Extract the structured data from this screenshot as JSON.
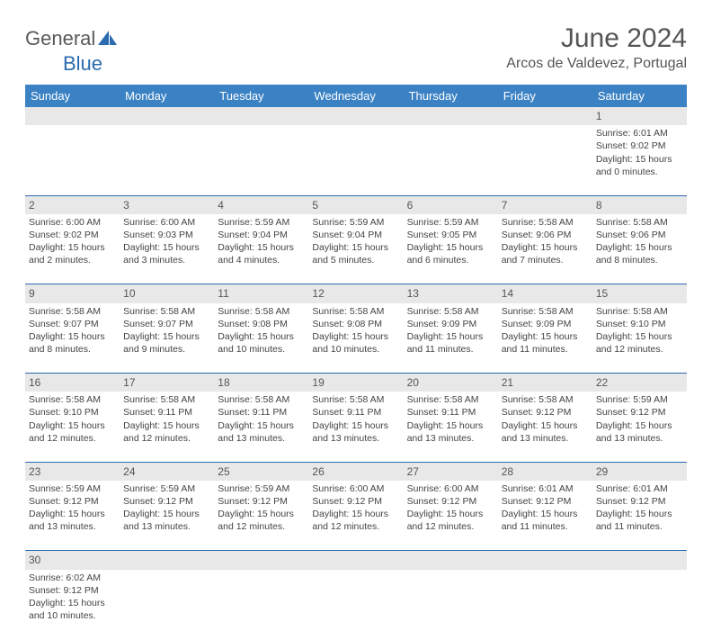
{
  "logo": {
    "general": "General",
    "blue": "Blue"
  },
  "header": {
    "month_title": "June 2024",
    "location": "Arcos de Valdevez, Portugal"
  },
  "colors": {
    "header_bg": "#3b82c4",
    "header_text": "#ffffff",
    "daynum_bg": "#e8e8e8",
    "border": "#2b6bb0",
    "logo_gray": "#5a5a5a",
    "logo_blue": "#2b6bb0"
  },
  "weekdays": [
    "Sunday",
    "Monday",
    "Tuesday",
    "Wednesday",
    "Thursday",
    "Friday",
    "Saturday"
  ],
  "weeks": [
    {
      "nums": [
        "",
        "",
        "",
        "",
        "",
        "",
        "1"
      ],
      "cells": [
        null,
        null,
        null,
        null,
        null,
        null,
        {
          "sunrise": "Sunrise: 6:01 AM",
          "sunset": "Sunset: 9:02 PM",
          "daylight1": "Daylight: 15 hours",
          "daylight2": "and 0 minutes."
        }
      ]
    },
    {
      "nums": [
        "2",
        "3",
        "4",
        "5",
        "6",
        "7",
        "8"
      ],
      "cells": [
        {
          "sunrise": "Sunrise: 6:00 AM",
          "sunset": "Sunset: 9:02 PM",
          "daylight1": "Daylight: 15 hours",
          "daylight2": "and 2 minutes."
        },
        {
          "sunrise": "Sunrise: 6:00 AM",
          "sunset": "Sunset: 9:03 PM",
          "daylight1": "Daylight: 15 hours",
          "daylight2": "and 3 minutes."
        },
        {
          "sunrise": "Sunrise: 5:59 AM",
          "sunset": "Sunset: 9:04 PM",
          "daylight1": "Daylight: 15 hours",
          "daylight2": "and 4 minutes."
        },
        {
          "sunrise": "Sunrise: 5:59 AM",
          "sunset": "Sunset: 9:04 PM",
          "daylight1": "Daylight: 15 hours",
          "daylight2": "and 5 minutes."
        },
        {
          "sunrise": "Sunrise: 5:59 AM",
          "sunset": "Sunset: 9:05 PM",
          "daylight1": "Daylight: 15 hours",
          "daylight2": "and 6 minutes."
        },
        {
          "sunrise": "Sunrise: 5:58 AM",
          "sunset": "Sunset: 9:06 PM",
          "daylight1": "Daylight: 15 hours",
          "daylight2": "and 7 minutes."
        },
        {
          "sunrise": "Sunrise: 5:58 AM",
          "sunset": "Sunset: 9:06 PM",
          "daylight1": "Daylight: 15 hours",
          "daylight2": "and 8 minutes."
        }
      ]
    },
    {
      "nums": [
        "9",
        "10",
        "11",
        "12",
        "13",
        "14",
        "15"
      ],
      "cells": [
        {
          "sunrise": "Sunrise: 5:58 AM",
          "sunset": "Sunset: 9:07 PM",
          "daylight1": "Daylight: 15 hours",
          "daylight2": "and 8 minutes."
        },
        {
          "sunrise": "Sunrise: 5:58 AM",
          "sunset": "Sunset: 9:07 PM",
          "daylight1": "Daylight: 15 hours",
          "daylight2": "and 9 minutes."
        },
        {
          "sunrise": "Sunrise: 5:58 AM",
          "sunset": "Sunset: 9:08 PM",
          "daylight1": "Daylight: 15 hours",
          "daylight2": "and 10 minutes."
        },
        {
          "sunrise": "Sunrise: 5:58 AM",
          "sunset": "Sunset: 9:08 PM",
          "daylight1": "Daylight: 15 hours",
          "daylight2": "and 10 minutes."
        },
        {
          "sunrise": "Sunrise: 5:58 AM",
          "sunset": "Sunset: 9:09 PM",
          "daylight1": "Daylight: 15 hours",
          "daylight2": "and 11 minutes."
        },
        {
          "sunrise": "Sunrise: 5:58 AM",
          "sunset": "Sunset: 9:09 PM",
          "daylight1": "Daylight: 15 hours",
          "daylight2": "and 11 minutes."
        },
        {
          "sunrise": "Sunrise: 5:58 AM",
          "sunset": "Sunset: 9:10 PM",
          "daylight1": "Daylight: 15 hours",
          "daylight2": "and 12 minutes."
        }
      ]
    },
    {
      "nums": [
        "16",
        "17",
        "18",
        "19",
        "20",
        "21",
        "22"
      ],
      "cells": [
        {
          "sunrise": "Sunrise: 5:58 AM",
          "sunset": "Sunset: 9:10 PM",
          "daylight1": "Daylight: 15 hours",
          "daylight2": "and 12 minutes."
        },
        {
          "sunrise": "Sunrise: 5:58 AM",
          "sunset": "Sunset: 9:11 PM",
          "daylight1": "Daylight: 15 hours",
          "daylight2": "and 12 minutes."
        },
        {
          "sunrise": "Sunrise: 5:58 AM",
          "sunset": "Sunset: 9:11 PM",
          "daylight1": "Daylight: 15 hours",
          "daylight2": "and 13 minutes."
        },
        {
          "sunrise": "Sunrise: 5:58 AM",
          "sunset": "Sunset: 9:11 PM",
          "daylight1": "Daylight: 15 hours",
          "daylight2": "and 13 minutes."
        },
        {
          "sunrise": "Sunrise: 5:58 AM",
          "sunset": "Sunset: 9:11 PM",
          "daylight1": "Daylight: 15 hours",
          "daylight2": "and 13 minutes."
        },
        {
          "sunrise": "Sunrise: 5:58 AM",
          "sunset": "Sunset: 9:12 PM",
          "daylight1": "Daylight: 15 hours",
          "daylight2": "and 13 minutes."
        },
        {
          "sunrise": "Sunrise: 5:59 AM",
          "sunset": "Sunset: 9:12 PM",
          "daylight1": "Daylight: 15 hours",
          "daylight2": "and 13 minutes."
        }
      ]
    },
    {
      "nums": [
        "23",
        "24",
        "25",
        "26",
        "27",
        "28",
        "29"
      ],
      "cells": [
        {
          "sunrise": "Sunrise: 5:59 AM",
          "sunset": "Sunset: 9:12 PM",
          "daylight1": "Daylight: 15 hours",
          "daylight2": "and 13 minutes."
        },
        {
          "sunrise": "Sunrise: 5:59 AM",
          "sunset": "Sunset: 9:12 PM",
          "daylight1": "Daylight: 15 hours",
          "daylight2": "and 13 minutes."
        },
        {
          "sunrise": "Sunrise: 5:59 AM",
          "sunset": "Sunset: 9:12 PM",
          "daylight1": "Daylight: 15 hours",
          "daylight2": "and 12 minutes."
        },
        {
          "sunrise": "Sunrise: 6:00 AM",
          "sunset": "Sunset: 9:12 PM",
          "daylight1": "Daylight: 15 hours",
          "daylight2": "and 12 minutes."
        },
        {
          "sunrise": "Sunrise: 6:00 AM",
          "sunset": "Sunset: 9:12 PM",
          "daylight1": "Daylight: 15 hours",
          "daylight2": "and 12 minutes."
        },
        {
          "sunrise": "Sunrise: 6:01 AM",
          "sunset": "Sunset: 9:12 PM",
          "daylight1": "Daylight: 15 hours",
          "daylight2": "and 11 minutes."
        },
        {
          "sunrise": "Sunrise: 6:01 AM",
          "sunset": "Sunset: 9:12 PM",
          "daylight1": "Daylight: 15 hours",
          "daylight2": "and 11 minutes."
        }
      ]
    },
    {
      "nums": [
        "30",
        "",
        "",
        "",
        "",
        "",
        ""
      ],
      "cells": [
        {
          "sunrise": "Sunrise: 6:02 AM",
          "sunset": "Sunset: 9:12 PM",
          "daylight1": "Daylight: 15 hours",
          "daylight2": "and 10 minutes."
        },
        null,
        null,
        null,
        null,
        null,
        null
      ]
    }
  ]
}
